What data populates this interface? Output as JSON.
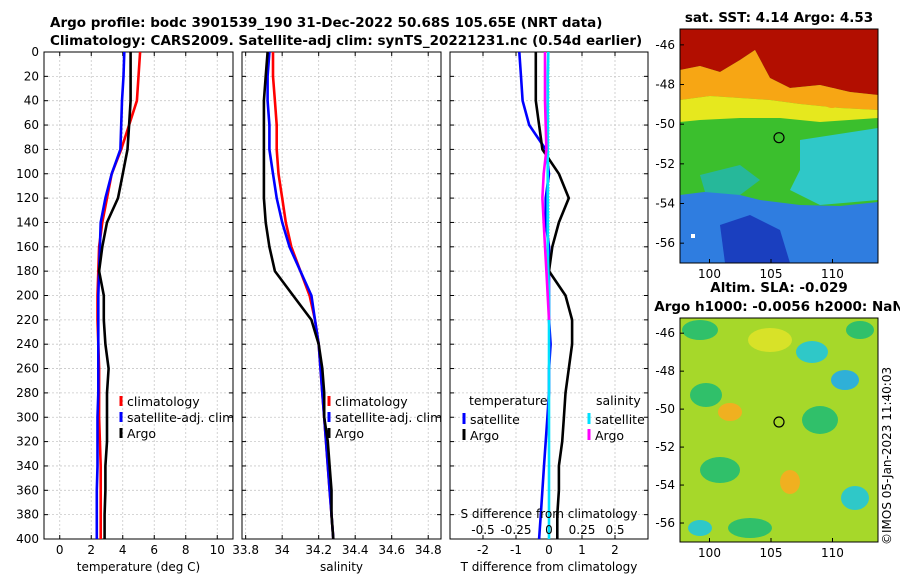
{
  "figure": {
    "title_line1": "Argo profile: bodc 3901539_190 31-Dec-2022 50.68S 105.65E (NRT data)",
    "title_line2": "Climatology: CARS2009. Satellite-adj clim: synTS_20221231.nc (0.54d earlier)",
    "copyright": "©IMOS 05-Jan-2023 11:40:03"
  },
  "colors": {
    "climatology": "#ff0000",
    "satellite": "#0000ff",
    "argo": "#000000",
    "temp_satellite_diff": "#0000ff",
    "sal_satellite_diff": "#00e0ff",
    "sal_argo_diff": "#ff00ff",
    "zero_line": "#00c8ff"
  },
  "chart_data": [
    {
      "type": "line",
      "id": "temperature",
      "xlabel": "temperature (deg C)",
      "ylabel": "",
      "xlim": [
        -1,
        11
      ],
      "ylim": [
        400,
        0
      ],
      "xticks": [
        "0",
        "2",
        "4",
        "6",
        "8",
        "10"
      ],
      "xtick_values": [
        0,
        2,
        4,
        6,
        8,
        10
      ],
      "yticks": [
        "0",
        "20",
        "40",
        "60",
        "80",
        "100",
        "120",
        "140",
        "160",
        "180",
        "200",
        "220",
        "240",
        "260",
        "280",
        "300",
        "320",
        "340",
        "360",
        "380",
        "400"
      ],
      "ytick_values": [
        0,
        20,
        40,
        60,
        80,
        100,
        120,
        140,
        160,
        180,
        200,
        220,
        240,
        260,
        280,
        300,
        320,
        340,
        360,
        380,
        400
      ],
      "legend": {
        "location": "center-right",
        "entries": [
          "climatology",
          "satellite-adj. clim",
          "Argo"
        ]
      },
      "series": [
        {
          "name": "climatology",
          "color_key": "climatology",
          "x": [
            5.1,
            5.0,
            4.9,
            4.4,
            3.9,
            3.3,
            3.0,
            2.7,
            2.5,
            2.45,
            2.4,
            2.4,
            2.45,
            2.5,
            2.5,
            2.5,
            2.55,
            2.6,
            2.6,
            2.6,
            2.6
          ],
          "y": [
            0,
            20,
            40,
            60,
            80,
            100,
            120,
            140,
            160,
            180,
            200,
            220,
            240,
            260,
            280,
            300,
            320,
            340,
            360,
            380,
            400
          ]
        },
        {
          "name": "satellite-adj. clim",
          "color_key": "satellite",
          "x": [
            4.1,
            4.05,
            3.95,
            3.9,
            3.85,
            3.3,
            2.9,
            2.6,
            2.55,
            2.5,
            2.45,
            2.45,
            2.45,
            2.45,
            2.45,
            2.4,
            2.4,
            2.4,
            2.35,
            2.35,
            2.35
          ],
          "y": [
            0,
            20,
            40,
            60,
            80,
            100,
            120,
            140,
            160,
            180,
            200,
            220,
            240,
            260,
            280,
            300,
            320,
            340,
            360,
            380,
            400
          ]
        },
        {
          "name": "Argo",
          "color_key": "argo",
          "x": [
            4.5,
            4.5,
            4.5,
            4.4,
            4.3,
            4.0,
            3.7,
            3.0,
            2.7,
            2.5,
            2.8,
            2.8,
            2.9,
            3.1,
            3.0,
            3.0,
            3.0,
            2.9,
            2.9,
            2.85,
            2.85
          ],
          "y": [
            0,
            20,
            40,
            60,
            80,
            100,
            120,
            140,
            160,
            180,
            200,
            220,
            240,
            260,
            280,
            300,
            320,
            340,
            360,
            380,
            400
          ]
        }
      ]
    },
    {
      "type": "line",
      "id": "salinity",
      "xlabel": "salinity",
      "ylabel": "",
      "xlim": [
        33.78,
        34.87
      ],
      "ylim": [
        400,
        0
      ],
      "xticks": [
        "33.8",
        "34",
        "34.2",
        "34.4",
        "34.6",
        "34.8"
      ],
      "xtick_values": [
        33.8,
        34.0,
        34.2,
        34.4,
        34.6,
        34.8
      ],
      "legend": {
        "location": "center-right",
        "entries": [
          "climatology",
          "satellite-adj. clim",
          "Argo"
        ]
      },
      "series": [
        {
          "name": "climatology",
          "color_key": "climatology",
          "x": [
            33.95,
            33.95,
            33.96,
            33.97,
            33.97,
            33.98,
            34.0,
            34.02,
            34.05,
            34.1,
            34.15,
            34.18,
            34.2,
            34.21,
            34.22,
            34.23,
            34.24,
            34.25,
            34.26,
            34.27,
            34.28
          ],
          "y": [
            0,
            20,
            40,
            60,
            80,
            100,
            120,
            140,
            160,
            180,
            200,
            220,
            240,
            260,
            280,
            300,
            320,
            340,
            360,
            380,
            400
          ]
        },
        {
          "name": "satellite-adj. clim",
          "color_key": "satellite",
          "x": [
            33.93,
            33.92,
            33.92,
            33.93,
            33.93,
            33.95,
            33.97,
            34.0,
            34.04,
            34.1,
            34.16,
            34.18,
            34.2,
            34.21,
            34.22,
            34.23,
            34.24,
            34.25,
            34.26,
            34.27,
            34.28
          ],
          "y": [
            0,
            20,
            40,
            60,
            80,
            100,
            120,
            140,
            160,
            180,
            200,
            220,
            240,
            260,
            280,
            300,
            320,
            340,
            360,
            380,
            400
          ]
        },
        {
          "name": "Argo",
          "color_key": "argo",
          "x": [
            33.92,
            33.91,
            33.9,
            33.9,
            33.9,
            33.9,
            33.9,
            33.91,
            33.93,
            33.96,
            34.06,
            34.16,
            34.2,
            34.22,
            34.23,
            34.23,
            34.25,
            34.26,
            34.27,
            34.27,
            34.28
          ],
          "y": [
            0,
            20,
            40,
            60,
            80,
            100,
            120,
            140,
            160,
            180,
            200,
            220,
            240,
            260,
            280,
            300,
            320,
            340,
            360,
            380,
            400
          ]
        }
      ]
    },
    {
      "type": "line",
      "id": "differences",
      "xlabel": "T difference from climatology",
      "xlabel_top": "S difference from climatology",
      "ylabel": "",
      "xlim": [
        -3,
        3
      ],
      "ylim": [
        400,
        0
      ],
      "xticks": [
        "-2",
        "-1",
        "0",
        "1",
        "2"
      ],
      "xtick_values": [
        -2,
        -1,
        0,
        1,
        2
      ],
      "s_xticks": [
        "-0.5",
        "-0.25",
        "0",
        "0.25",
        "0.5"
      ],
      "s_xtick_values": [
        -0.5,
        -0.25,
        0,
        0.25,
        0.5
      ],
      "s_scale": 4,
      "legend": {
        "location": "center",
        "temp_header": "temperature",
        "sal_header": "salinity",
        "temp_entries": [
          "satellite",
          "Argo"
        ],
        "sal_entries": [
          "satellite",
          "Argo"
        ]
      },
      "series": [
        {
          "name": "temperature satellite",
          "color_key": "temp_satellite_diff",
          "x": [
            -0.9,
            -0.85,
            -0.8,
            -0.6,
            -0.1,
            0,
            -0.1,
            -0.1,
            0,
            0,
            0,
            0,
            0.05,
            0,
            0,
            -0.05,
            -0.1,
            -0.15,
            -0.2,
            -0.25,
            -0.3
          ],
          "y": [
            0,
            20,
            40,
            60,
            80,
            100,
            120,
            140,
            160,
            180,
            200,
            220,
            240,
            260,
            280,
            300,
            320,
            340,
            360,
            380,
            400
          ]
        },
        {
          "name": "temperature Argo",
          "color_key": "argo",
          "x": [
            -0.4,
            -0.4,
            -0.4,
            -0.3,
            -0.2,
            0.3,
            0.6,
            0.3,
            0.1,
            0,
            0.5,
            0.7,
            0.7,
            0.6,
            0.5,
            0.45,
            0.4,
            0.3,
            0.3,
            0.25,
            0.25
          ],
          "y": [
            0,
            20,
            40,
            60,
            80,
            100,
            120,
            140,
            160,
            180,
            200,
            220,
            240,
            260,
            280,
            300,
            320,
            340,
            360,
            380,
            400
          ]
        },
        {
          "name": "salinity satellite",
          "color_key": "sal_satellite_diff",
          "x": [
            -0.005,
            -0.01,
            -0.01,
            -0.01,
            -0.01,
            -0.01,
            -0.01,
            -0.01,
            -0.01,
            -0.005,
            0,
            0,
            0,
            0,
            0,
            0,
            0,
            0,
            0,
            0,
            0
          ],
          "y": [
            0,
            20,
            40,
            60,
            80,
            100,
            120,
            140,
            160,
            180,
            200,
            220,
            240,
            260,
            280,
            300,
            320,
            340,
            360,
            380,
            400
          ]
        },
        {
          "name": "salinity Argo",
          "color_key": "sal_argo_diff",
          "x": [
            -0.03,
            -0.03,
            -0.03,
            -0.025,
            -0.02,
            -0.04,
            -0.05,
            -0.04,
            -0.03,
            -0.02,
            -0.01,
            0
          ],
          "y": [
            0,
            20,
            40,
            60,
            80,
            100,
            120,
            140,
            160,
            180,
            200,
            220
          ]
        }
      ]
    },
    {
      "type": "heatmap",
      "id": "sst-map",
      "title": "sat. SST: 4.14 Argo: 4.53",
      "xticks": [
        "100",
        "105",
        "110"
      ],
      "xtick_values": [
        100,
        105,
        110
      ],
      "yticks": [
        "-46",
        "-48",
        "-50",
        "-52",
        "-54",
        "-56"
      ],
      "ytick_values": [
        -46,
        -48,
        -50,
        -52,
        -54,
        -56
      ],
      "xlim": [
        97.6,
        113.7
      ],
      "ylim": [
        -45.2,
        -57.0
      ],
      "marker": {
        "lon": 105.65,
        "lat": -50.68
      }
    },
    {
      "type": "heatmap",
      "id": "sla-map",
      "title_line1": "Altim. SLA: -0.029",
      "title_line2": "Argo h1000: -0.0056 h2000: NaN",
      "xticks": [
        "100",
        "105",
        "110"
      ],
      "xtick_values": [
        100,
        105,
        110
      ],
      "yticks": [
        "-46",
        "-48",
        "-50",
        "-52",
        "-54",
        "-56"
      ],
      "ytick_values": [
        -46,
        -48,
        -50,
        -52,
        -54,
        -56
      ],
      "xlim": [
        97.6,
        113.7
      ],
      "ylim": [
        -45.2,
        -57.0
      ],
      "marker": {
        "lon": 105.65,
        "lat": -50.68
      }
    }
  ]
}
